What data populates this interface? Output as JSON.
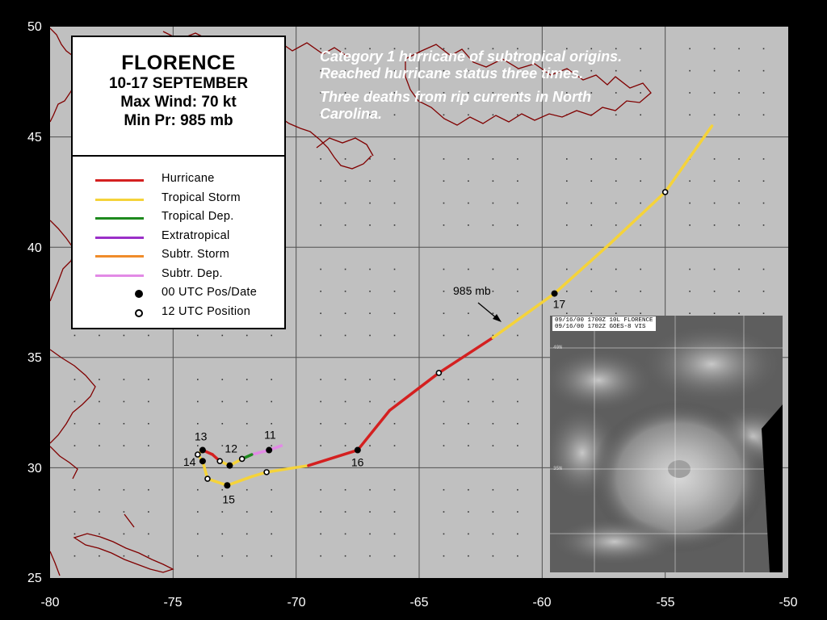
{
  "map": {
    "x_axis_ticks": [
      "-80",
      "-75",
      "-70",
      "-65",
      "-60",
      "-55",
      "-50"
    ],
    "y_axis_ticks": [
      "50",
      "45",
      "40",
      "35",
      "30",
      "25"
    ],
    "x_range": [
      -80,
      -50
    ],
    "y_range": [
      25,
      50
    ],
    "background": "#c0c0c0",
    "coast_color": "#800000"
  },
  "legend": {
    "title": "FLORENCE",
    "dates": "10-17 SEPTEMBER",
    "max_wind": "Max Wind: 70 kt",
    "min_pressure": "Min Pr: 985 mb",
    "items": [
      {
        "label": "Hurricane",
        "color": "#d42020"
      },
      {
        "label": "Tropical Storm",
        "color": "#f5d33a"
      },
      {
        "label": "Tropical Dep.",
        "color": "#1e8a1e"
      },
      {
        "label": "Extratropical",
        "color": "#9b30c8"
      },
      {
        "label": "Subtr. Storm",
        "color": "#f08c2a"
      },
      {
        "label": "Subtr. Dep.",
        "color": "#e28ae6"
      },
      {
        "label": "00 UTC Pos/Date",
        "marker": "filled"
      },
      {
        "label": "12 UTC Position",
        "marker": "open"
      }
    ]
  },
  "annotation": {
    "line1": "Category 1 hurricane of subtropical origins.  Reached hurricane status three times.",
    "line2": "Three deaths from rip currents in North Carolina."
  },
  "track_labels": {
    "pressure": "985 mb",
    "days": [
      {
        "label": "11",
        "lon": -71.1,
        "lat": 30.8
      },
      {
        "label": "12",
        "lon": -72.7,
        "lat": 30.1
      },
      {
        "label": "13",
        "lon": -73.8,
        "lat": 30.8
      },
      {
        "label": "14",
        "lon": -73.8,
        "lat": 30.3
      },
      {
        "label": "15",
        "lon": -72.8,
        "lat": 29.2
      },
      {
        "label": "16",
        "lon": -67.5,
        "lat": 30.8
      },
      {
        "label": "17",
        "lon": -59.5,
        "lat": 37.9
      }
    ]
  },
  "track": [
    {
      "lon": -70.6,
      "lat": 31.0,
      "type": "Subtr. Dep."
    },
    {
      "lon": -71.1,
      "lat": 30.8,
      "type": "Subtr. Dep."
    },
    {
      "lon": -71.8,
      "lat": 30.6,
      "type": "Subtr. Dep."
    },
    {
      "lon": -72.2,
      "lat": 30.4,
      "type": "Tropical Dep."
    },
    {
      "lon": -72.7,
      "lat": 30.1,
      "type": "Tropical Storm"
    },
    {
      "lon": -73.1,
      "lat": 30.3,
      "type": "Tropical Storm"
    },
    {
      "lon": -73.4,
      "lat": 30.6,
      "type": "Hurricane"
    },
    {
      "lon": -73.8,
      "lat": 30.8,
      "type": "Hurricane"
    },
    {
      "lon": -74.0,
      "lat": 30.6,
      "type": "Tropical Storm"
    },
    {
      "lon": -73.8,
      "lat": 30.3,
      "type": "Tropical Storm"
    },
    {
      "lon": -73.6,
      "lat": 29.5,
      "type": "Tropical Storm"
    },
    {
      "lon": -72.8,
      "lat": 29.2,
      "type": "Tropical Storm"
    },
    {
      "lon": -71.8,
      "lat": 29.6,
      "type": "Tropical Storm"
    },
    {
      "lon": -71.2,
      "lat": 29.8,
      "type": "Tropical Storm"
    },
    {
      "lon": -69.5,
      "lat": 30.1,
      "type": "Tropical Storm"
    },
    {
      "lon": -67.5,
      "lat": 30.8,
      "type": "Hurricane"
    },
    {
      "lon": -66.2,
      "lat": 32.6,
      "type": "Hurricane"
    },
    {
      "lon": -64.2,
      "lat": 34.3,
      "type": "Hurricane"
    },
    {
      "lon": -62.0,
      "lat": 35.9,
      "type": "Hurricane"
    },
    {
      "lon": -59.5,
      "lat": 37.9,
      "type": "Tropical Storm"
    },
    {
      "lon": -57.3,
      "lat": 40.1,
      "type": "Tropical Storm"
    },
    {
      "lon": -55.0,
      "lat": 42.5,
      "type": "Tropical Storm"
    },
    {
      "lon": -53.1,
      "lat": 45.5,
      "type": "Tropical Storm"
    }
  ],
  "positions_00utc": [
    {
      "lon": -71.1,
      "lat": 30.8
    },
    {
      "lon": -72.7,
      "lat": 30.1
    },
    {
      "lon": -73.8,
      "lat": 30.8
    },
    {
      "lon": -73.8,
      "lat": 30.3
    },
    {
      "lon": -72.8,
      "lat": 29.2
    },
    {
      "lon": -67.5,
      "lat": 30.8
    },
    {
      "lon": -59.5,
      "lat": 37.9
    }
  ],
  "positions_12utc": [
    {
      "lon": -72.2,
      "lat": 30.4
    },
    {
      "lon": -73.1,
      "lat": 30.3
    },
    {
      "lon": -74.0,
      "lat": 30.6
    },
    {
      "lon": -73.6,
      "lat": 29.5
    },
    {
      "lon": -71.2,
      "lat": 29.8
    },
    {
      "lon": -64.2,
      "lat": 34.3
    },
    {
      "lon": -55.0,
      "lat": 42.5
    }
  ],
  "satellite": {
    "caption_line1": "09/16/00 1700Z  10L FLORENCE",
    "caption_line2": "09/16/00 1702Z  GOES-8 VIS",
    "lat_label_top": "40N",
    "lat_label_bottom": "35N"
  }
}
